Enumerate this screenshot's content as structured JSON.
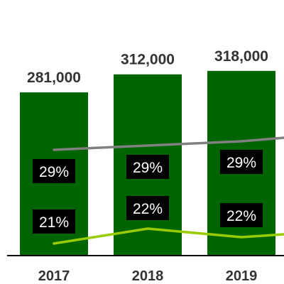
{
  "chart_data": {
    "type": "bar",
    "title": "",
    "xlabel": "",
    "ylabel": "",
    "categories": [
      "2017",
      "2018",
      "2019"
    ],
    "series": [
      {
        "values": [
          281000,
          312000,
          318000
        ],
        "labels": [
          "281,000",
          "312,000",
          "318,000"
        ],
        "color": "#006400"
      },
      {
        "type": "line",
        "values": [
          29,
          29,
          29
        ],
        "labels": [
          "29%",
          "29%",
          "29%"
        ],
        "color": "#808080",
        "unit": "%"
      },
      {
        "type": "line",
        "values": [
          21,
          22,
          22
        ],
        "labels": [
          "21%",
          "22%",
          "22%"
        ],
        "color": "#99CC00",
        "unit": "%"
      }
    ],
    "legend": "none",
    "grid": false,
    "label_box_color": "#000000",
    "label_text_color": "#ffffff"
  }
}
